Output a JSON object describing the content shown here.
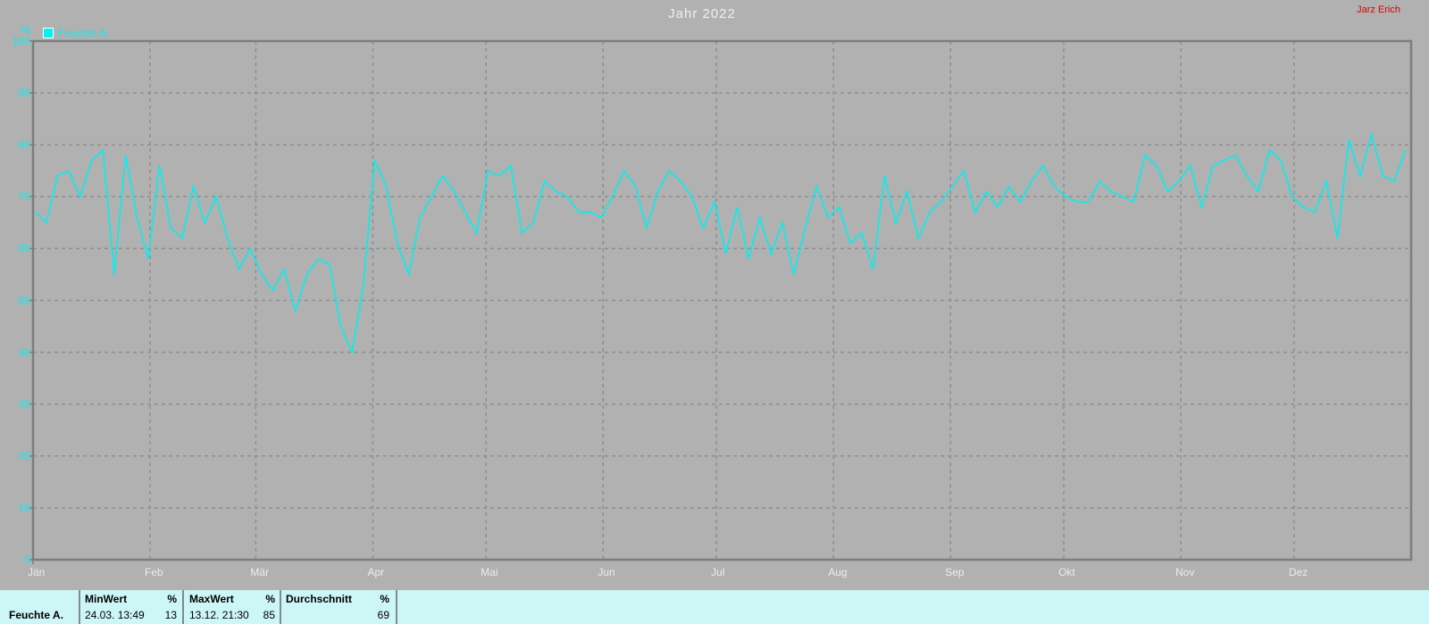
{
  "header": {
    "title": "Jahr 2022",
    "watermark": "Jarz Erich"
  },
  "legend": {
    "label": "Feuchte A."
  },
  "y_axis": {
    "unit": "%",
    "ticks": [
      100,
      90,
      80,
      70,
      60,
      50,
      40,
      30,
      20,
      10,
      0
    ]
  },
  "x_axis": {
    "months": [
      "Jän",
      "Feb",
      "Mär",
      "Apr",
      "Mai",
      "Jun",
      "Jul",
      "Aug",
      "Sep",
      "Okt",
      "Nov",
      "Dez"
    ],
    "month_start_days": [
      0,
      31,
      59,
      90,
      120,
      151,
      181,
      212,
      243,
      273,
      304,
      334
    ]
  },
  "chart_data": {
    "type": "line",
    "title": "Jahr 2022",
    "series_name": "Feuchte A.",
    "ylabel": "%",
    "ylim": [
      0,
      100
    ],
    "xlim_days": [
      1,
      365
    ],
    "grid": "dashed",
    "legend_position": "top-left",
    "x_unit": "day-of-year",
    "x_start_day": 1,
    "x_step_days": 3,
    "month_boundaries_day": [
      31,
      59,
      90,
      120,
      151,
      181,
      212,
      243,
      273,
      304,
      334
    ],
    "values": [
      67,
      65,
      74,
      75,
      70,
      77,
      79,
      55,
      78,
      66,
      58,
      76,
      64,
      62,
      72,
      65,
      70,
      62,
      56,
      60,
      55,
      52,
      56,
      48,
      55,
      58,
      57,
      45,
      40,
      53,
      77,
      72,
      61,
      55,
      66,
      70,
      74,
      71,
      67,
      63,
      75,
      74,
      76,
      63,
      65,
      73,
      71,
      70,
      67,
      67,
      66,
      70,
      75,
      72,
      64,
      71,
      75,
      73,
      70,
      64,
      69,
      59,
      68,
      58,
      66,
      59,
      65,
      55,
      64,
      72,
      66,
      68,
      61,
      63,
      56,
      74,
      65,
      71,
      62,
      67,
      69,
      72,
      75,
      67,
      71,
      68,
      72,
      69,
      73,
      76,
      72,
      70,
      69,
      69,
      73,
      71,
      70,
      69,
      78,
      76,
      71,
      73,
      76,
      68,
      76,
      77,
      78,
      74,
      71,
      79,
      77,
      70,
      68,
      67,
      73,
      62,
      81,
      74,
      82,
      74,
      73,
      79
    ]
  },
  "summary_table": {
    "row_label": "Feuchte A.",
    "columns": [
      {
        "header": "MinWert",
        "unit": "%",
        "date": "24.03.  13:49",
        "value": "13"
      },
      {
        "header": "MaxWert",
        "unit": "%",
        "date": "13.12.  21:30",
        "value": "85"
      },
      {
        "header": "Durchschnitt",
        "unit": "%",
        "date": "",
        "value": "69"
      }
    ]
  },
  "colors": {
    "background": "#b1b1b1",
    "frame": "#7d7d7d",
    "grid": "#8f8f8f",
    "line": "#00f0f0",
    "axis_text": "#00f2f2",
    "month_text": "#ededed",
    "title_text": "#f0f0f0",
    "watermark_text": "#e00000",
    "table_background": "#cdf6f6"
  }
}
